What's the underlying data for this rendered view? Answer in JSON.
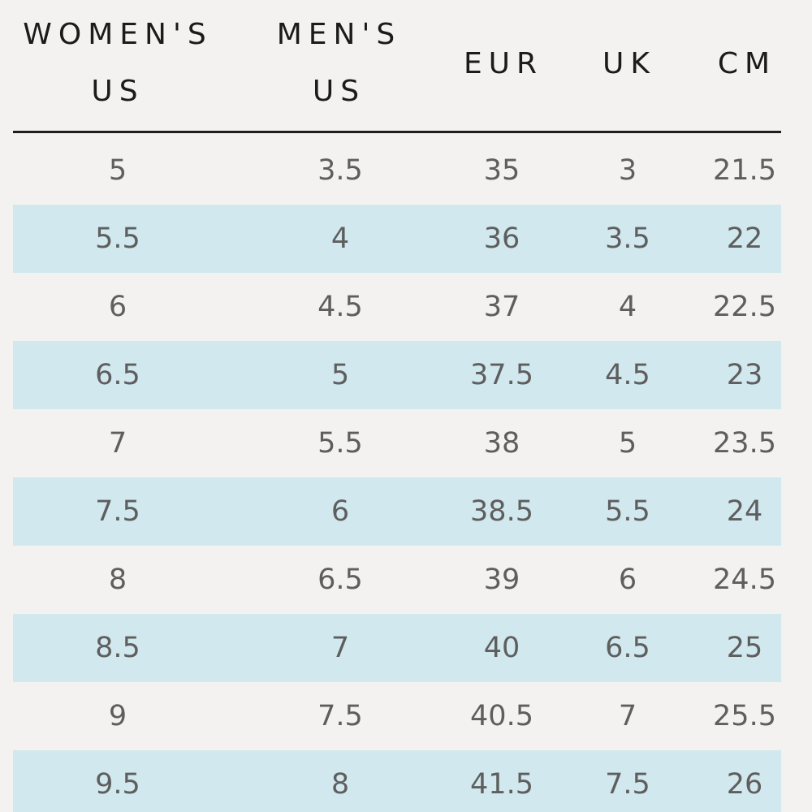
{
  "table": {
    "headers": [
      {
        "line1": "WOMEN'S",
        "line2": "US"
      },
      {
        "line1": "MEN'S",
        "line2": "US"
      },
      {
        "line1": "EUR",
        "line2": ""
      },
      {
        "line1": "UK",
        "line2": ""
      },
      {
        "line1": "CM",
        "line2": ""
      }
    ],
    "rows": [
      [
        "5",
        "3.5",
        "35",
        "3",
        "21.5"
      ],
      [
        "5.5",
        "4",
        "36",
        "3.5",
        "22"
      ],
      [
        "6",
        "4.5",
        "37",
        "4",
        "22.5"
      ],
      [
        "6.5",
        "5",
        "37.5",
        "4.5",
        "23"
      ],
      [
        "7",
        "5.5",
        "38",
        "5",
        "23.5"
      ],
      [
        "7.5",
        "6",
        "38.5",
        "5.5",
        "24"
      ],
      [
        "8",
        "6.5",
        "39",
        "6",
        "24.5"
      ],
      [
        "8.5",
        "7",
        "40",
        "6.5",
        "25"
      ],
      [
        "9",
        "7.5",
        "40.5",
        "7",
        "25.5"
      ],
      [
        "9.5",
        "8",
        "41.5",
        "7.5",
        "26"
      ]
    ]
  },
  "colors": {
    "background": "#f3f2f0",
    "stripe": "#d1e8ee",
    "header_text": "#1b1b1b",
    "cell_text": "#5e5e5e",
    "rule": "#1e1e1e"
  }
}
